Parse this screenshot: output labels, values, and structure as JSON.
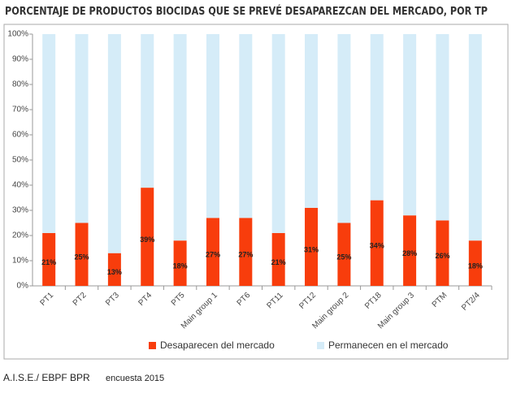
{
  "chart_data": {
    "type": "stacked_bar",
    "title": "PORCENTAJE DE PRODUCTOS BIOCIDAS QUE SE PREVÉ DESAPAREZCAN DEL MERCADO, POR TP",
    "categories": [
      "PT1",
      "PT2",
      "PT3",
      "PT4",
      "PT5",
      "Main group 1",
      "PT6",
      "PT11",
      "PT12",
      "Main group 2",
      "PT18",
      "Main group 3",
      "PTM",
      "PT2/4"
    ],
    "series": [
      {
        "name": "Desaparecen del mercado",
        "color": "#f83d0c",
        "values": [
          21,
          25,
          13,
          39,
          18,
          27,
          27,
          21,
          31,
          25,
          34,
          28,
          26,
          18
        ],
        "value_labels": [
          "21%",
          "25%",
          "13%",
          "39%",
          "18%",
          "27%",
          "27%",
          "21%",
          "31%",
          "25%",
          "34%",
          "28%",
          "26%",
          "18%"
        ]
      },
      {
        "name": "Permanecen en el mercado",
        "color": "#d5ecf8",
        "values": [
          79,
          75,
          87,
          61,
          82,
          73,
          73,
          79,
          69,
          75,
          66,
          72,
          74,
          82
        ]
      }
    ],
    "ylim": [
      0,
      100
    ],
    "yticks": [
      {
        "value": 0,
        "label": "0%"
      },
      {
        "value": 10,
        "label": "10%"
      },
      {
        "value": 20,
        "label": "20%"
      },
      {
        "value": 30,
        "label": "30%"
      },
      {
        "value": 40,
        "label": "40%"
      },
      {
        "value": 50,
        "label": "50%"
      },
      {
        "value": 60,
        "label": "60%"
      },
      {
        "value": 70,
        "label": "70%"
      },
      {
        "value": 80,
        "label": "80%"
      },
      {
        "value": 90,
        "label": "90%"
      },
      {
        "value": 100,
        "label": "100%"
      }
    ],
    "grid": false,
    "legend": "bottom",
    "source": "A.I.S.E./ EBPF BPR",
    "note": "encuesta 2015"
  }
}
